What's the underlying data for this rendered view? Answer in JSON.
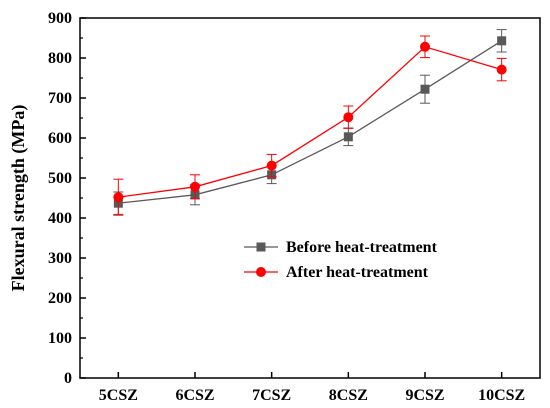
{
  "chart_data": {
    "type": "line",
    "categories": [
      "5CSZ",
      "6CSZ",
      "7CSZ",
      "8CSZ",
      "9CSZ",
      "10CSZ"
    ],
    "ylabel": "Flexural strength (MPa)",
    "xlabel": "",
    "ylim": [
      0,
      900
    ],
    "yticks": [
      0,
      100,
      200,
      300,
      400,
      500,
      600,
      700,
      800,
      900
    ],
    "grid": false,
    "legend_position": "center-right",
    "series": [
      {
        "name": "Before heat-treatment",
        "color": "#595959",
        "marker": "square",
        "values": [
          437,
          458,
          508,
          603,
          722,
          843
        ],
        "errors": [
          28,
          25,
          22,
          22,
          35,
          28
        ]
      },
      {
        "name": "After heat-treatment",
        "color": "#ff0000",
        "marker": "circle",
        "values": [
          452,
          478,
          531,
          652,
          828,
          771
        ],
        "errors": [
          45,
          30,
          28,
          28,
          27,
          28
        ]
      }
    ]
  }
}
